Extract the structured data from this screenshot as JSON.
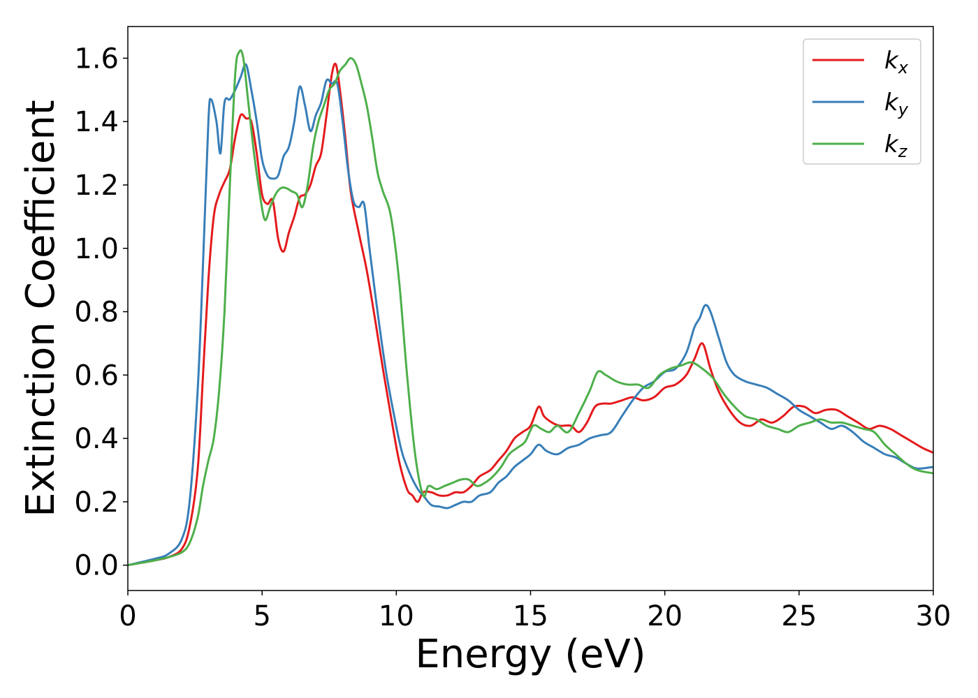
{
  "chart_data": {
    "type": "line",
    "title": "",
    "xlabel": "Energy (eV)",
    "ylabel": "Extinction Coefficient",
    "xlim": [
      0,
      30
    ],
    "ylim": [
      -0.08,
      1.7
    ],
    "xticks": [
      0,
      5,
      10,
      15,
      20,
      25,
      30
    ],
    "yticks": [
      0.0,
      0.2,
      0.4,
      0.6,
      0.8,
      1.0,
      1.2,
      1.4,
      1.6
    ],
    "grid": false,
    "legend_position": "top-right",
    "series": [
      {
        "name": "k",
        "subscript": "x",
        "color": "#e41a1c",
        "x": [
          0,
          1,
          1.5,
          2,
          2.3,
          2.6,
          2.8,
          3.0,
          3.2,
          3.4,
          3.6,
          3.8,
          4.0,
          4.2,
          4.4,
          4.6,
          4.8,
          5.0,
          5.2,
          5.4,
          5.6,
          5.8,
          6.0,
          6.2,
          6.4,
          6.6,
          6.8,
          7.0,
          7.2,
          7.4,
          7.6,
          7.75,
          7.9,
          8.1,
          8.3,
          8.6,
          8.9,
          9.2,
          9.5,
          9.8,
          10.1,
          10.4,
          10.6,
          10.8,
          11.0,
          11.3,
          11.6,
          11.9,
          12.2,
          12.5,
          12.8,
          13.1,
          13.5,
          13.8,
          14.1,
          14.4,
          14.7,
          15.0,
          15.3,
          15.5,
          15.8,
          16.1,
          16.5,
          16.8,
          17.1,
          17.4,
          17.7,
          18.0,
          18.4,
          18.8,
          19.2,
          19.6,
          20.0,
          20.4,
          20.8,
          21.1,
          21.4,
          21.7,
          22.0,
          22.4,
          22.8,
          23.2,
          23.6,
          24.0,
          24.4,
          24.8,
          25.2,
          25.6,
          26.0,
          26.4,
          26.8,
          27.2,
          27.6,
          28.0,
          28.4,
          28.8,
          29.2,
          29.6,
          30.0
        ],
        "y": [
          0.0,
          0.015,
          0.025,
          0.05,
          0.12,
          0.3,
          0.6,
          0.9,
          1.1,
          1.17,
          1.21,
          1.25,
          1.35,
          1.42,
          1.41,
          1.4,
          1.3,
          1.17,
          1.14,
          1.15,
          1.03,
          0.99,
          1.05,
          1.1,
          1.16,
          1.17,
          1.2,
          1.26,
          1.3,
          1.42,
          1.55,
          1.58,
          1.5,
          1.35,
          1.18,
          1.05,
          0.93,
          0.78,
          0.62,
          0.47,
          0.33,
          0.24,
          0.22,
          0.2,
          0.23,
          0.23,
          0.22,
          0.22,
          0.23,
          0.23,
          0.25,
          0.28,
          0.3,
          0.33,
          0.36,
          0.4,
          0.42,
          0.44,
          0.5,
          0.47,
          0.45,
          0.44,
          0.44,
          0.42,
          0.45,
          0.5,
          0.51,
          0.51,
          0.52,
          0.53,
          0.52,
          0.53,
          0.56,
          0.57,
          0.6,
          0.65,
          0.7,
          0.62,
          0.55,
          0.49,
          0.45,
          0.44,
          0.46,
          0.45,
          0.47,
          0.5,
          0.5,
          0.48,
          0.49,
          0.49,
          0.47,
          0.45,
          0.43,
          0.44,
          0.43,
          0.41,
          0.39,
          0.37,
          0.355
        ]
      },
      {
        "name": "k",
        "subscript": "y",
        "color": "#377eb8",
        "x": [
          0,
          1,
          1.5,
          2,
          2.3,
          2.6,
          2.8,
          3.0,
          3.1,
          3.3,
          3.45,
          3.6,
          3.8,
          4.0,
          4.2,
          4.4,
          4.6,
          4.8,
          5.0,
          5.2,
          5.4,
          5.6,
          5.8,
          6.0,
          6.2,
          6.4,
          6.6,
          6.8,
          7.0,
          7.2,
          7.4,
          7.6,
          7.8,
          8.0,
          8.2,
          8.4,
          8.6,
          8.8,
          9.0,
          9.3,
          9.6,
          9.9,
          10.2,
          10.5,
          10.8,
          11.0,
          11.3,
          11.6,
          11.9,
          12.2,
          12.5,
          12.8,
          13.1,
          13.5,
          13.8,
          14.1,
          14.4,
          14.7,
          15.0,
          15.3,
          15.6,
          16.0,
          16.4,
          16.8,
          17.2,
          17.6,
          18.0,
          18.4,
          18.8,
          19.2,
          19.6,
          20.0,
          20.4,
          20.8,
          21.1,
          21.3,
          21.5,
          21.7,
          22.0,
          22.3,
          22.6,
          23.0,
          23.4,
          23.8,
          24.2,
          24.6,
          25.0,
          25.4,
          25.8,
          26.2,
          26.6,
          27.0,
          27.4,
          27.8,
          28.2,
          28.6,
          29.0,
          29.4,
          30.0
        ],
        "y": [
          0.0,
          0.02,
          0.035,
          0.08,
          0.2,
          0.55,
          0.95,
          1.4,
          1.47,
          1.4,
          1.3,
          1.46,
          1.47,
          1.5,
          1.54,
          1.58,
          1.5,
          1.4,
          1.28,
          1.23,
          1.22,
          1.23,
          1.29,
          1.32,
          1.4,
          1.51,
          1.45,
          1.37,
          1.42,
          1.46,
          1.53,
          1.52,
          1.52,
          1.4,
          1.25,
          1.15,
          1.13,
          1.14,
          1.0,
          0.8,
          0.62,
          0.48,
          0.36,
          0.29,
          0.24,
          0.22,
          0.19,
          0.185,
          0.18,
          0.19,
          0.2,
          0.2,
          0.22,
          0.23,
          0.26,
          0.28,
          0.31,
          0.33,
          0.35,
          0.38,
          0.36,
          0.35,
          0.37,
          0.38,
          0.4,
          0.41,
          0.42,
          0.47,
          0.52,
          0.56,
          0.58,
          0.61,
          0.62,
          0.67,
          0.75,
          0.78,
          0.82,
          0.8,
          0.72,
          0.64,
          0.6,
          0.58,
          0.57,
          0.56,
          0.54,
          0.52,
          0.49,
          0.47,
          0.45,
          0.43,
          0.44,
          0.42,
          0.39,
          0.37,
          0.35,
          0.34,
          0.32,
          0.305,
          0.31
        ]
      },
      {
        "name": "k",
        "subscript": "z",
        "color": "#4daf4a",
        "x": [
          0,
          1,
          1.5,
          2,
          2.3,
          2.6,
          2.8,
          3.0,
          3.2,
          3.4,
          3.6,
          3.8,
          4.0,
          4.15,
          4.3,
          4.5,
          4.7,
          4.9,
          5.1,
          5.3,
          5.5,
          5.7,
          5.9,
          6.1,
          6.3,
          6.5,
          6.7,
          6.9,
          7.1,
          7.3,
          7.5,
          7.7,
          7.9,
          8.1,
          8.3,
          8.5,
          8.7,
          8.9,
          9.1,
          9.3,
          9.5,
          9.8,
          10.1,
          10.4,
          10.7,
          11.0,
          11.2,
          11.5,
          11.8,
          12.1,
          12.4,
          12.7,
          13.0,
          13.3,
          13.6,
          13.9,
          14.2,
          14.5,
          14.8,
          15.1,
          15.4,
          15.7,
          16.0,
          16.4,
          16.8,
          17.2,
          17.5,
          17.8,
          18.2,
          18.6,
          19.0,
          19.4,
          19.8,
          20.2,
          20.6,
          21.0,
          21.4,
          21.8,
          22.2,
          22.6,
          23.0,
          23.4,
          23.8,
          24.2,
          24.6,
          25.0,
          25.4,
          25.8,
          26.2,
          26.6,
          27.0,
          27.4,
          27.8,
          28.2,
          28.6,
          29.0,
          29.4,
          30.0
        ],
        "y": [
          0.0,
          0.015,
          0.025,
          0.04,
          0.07,
          0.15,
          0.25,
          0.33,
          0.4,
          0.55,
          0.8,
          1.2,
          1.55,
          1.62,
          1.6,
          1.45,
          1.3,
          1.18,
          1.09,
          1.13,
          1.17,
          1.19,
          1.19,
          1.18,
          1.17,
          1.13,
          1.2,
          1.32,
          1.4,
          1.45,
          1.5,
          1.52,
          1.56,
          1.58,
          1.6,
          1.58,
          1.52,
          1.45,
          1.35,
          1.24,
          1.18,
          1.1,
          0.9,
          0.6,
          0.35,
          0.22,
          0.25,
          0.24,
          0.25,
          0.26,
          0.27,
          0.27,
          0.25,
          0.26,
          0.28,
          0.31,
          0.35,
          0.37,
          0.39,
          0.44,
          0.43,
          0.42,
          0.44,
          0.42,
          0.48,
          0.55,
          0.61,
          0.6,
          0.58,
          0.57,
          0.57,
          0.56,
          0.6,
          0.62,
          0.63,
          0.64,
          0.62,
          0.59,
          0.54,
          0.5,
          0.47,
          0.46,
          0.44,
          0.43,
          0.42,
          0.44,
          0.45,
          0.46,
          0.45,
          0.45,
          0.44,
          0.43,
          0.42,
          0.38,
          0.35,
          0.32,
          0.3,
          0.29
        ]
      }
    ]
  }
}
